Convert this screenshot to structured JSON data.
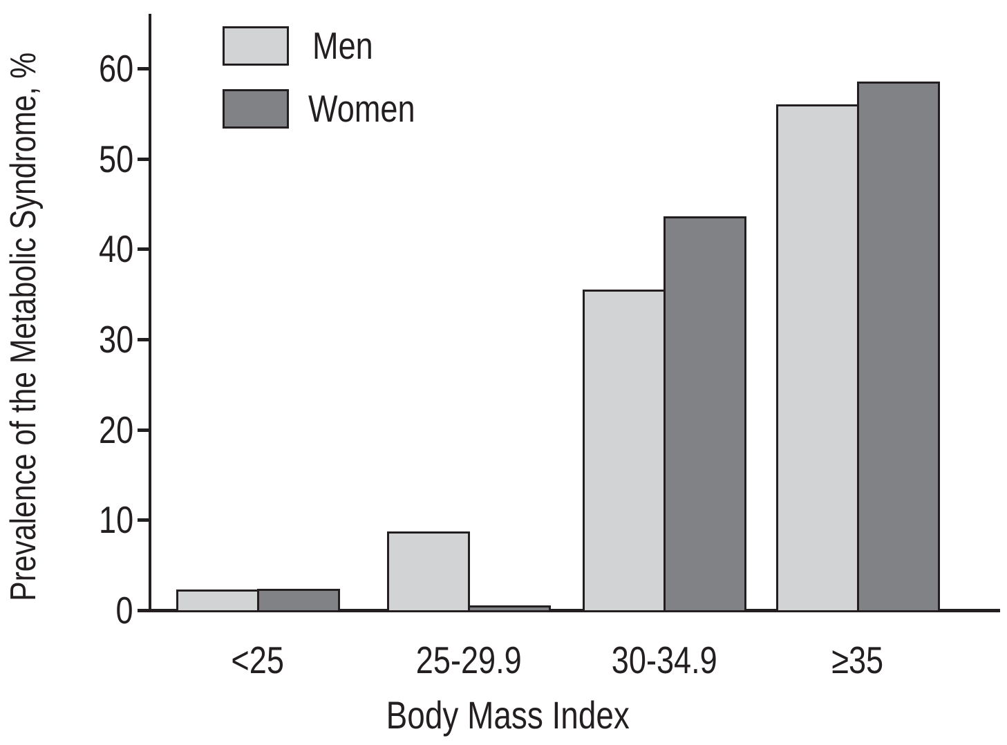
{
  "figure": {
    "background": "#ffffff",
    "ink_color": "#231f20"
  },
  "chart_data": {
    "type": "bar",
    "title": "",
    "xlabel": "Body Mass Index",
    "ylabel": "Prevalence of the Metabolic Syndrome, %",
    "categories": [
      "<25",
      "25-29.9",
      "30-34.9",
      "≥35"
    ],
    "series": [
      {
        "name": "Men",
        "color": "#d1d3d4",
        "values": [
          2.3,
          8.7,
          35.5,
          56.0
        ]
      },
      {
        "name": "Women",
        "color": "#808285",
        "values": [
          2.4,
          0.5,
          43.6,
          58.5
        ]
      }
    ],
    "yticks": [
      0,
      10,
      20,
      30,
      40,
      50,
      60
    ],
    "ylim": [
      0,
      66
    ],
    "grid": false,
    "legend_position": "top-left-inside"
  }
}
